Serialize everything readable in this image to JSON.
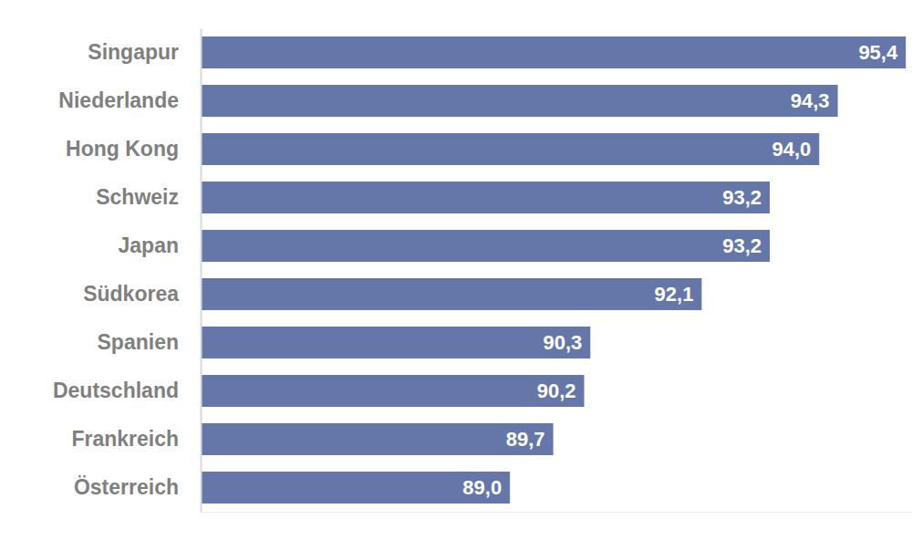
{
  "chart_data": {
    "type": "bar",
    "orientation": "horizontal",
    "categories": [
      "Singapur",
      "Niederlande",
      "Hong Kong",
      "Schweiz",
      "Japan",
      "Südkorea",
      "Spanien",
      "Deutschland",
      "Frankreich",
      "Österreich"
    ],
    "values": [
      95.4,
      94.3,
      94.0,
      93.2,
      93.2,
      92.1,
      90.3,
      90.2,
      89.7,
      89.0
    ],
    "value_labels": [
      "95,4",
      "94,3",
      "94,0",
      "93,2",
      "93,2",
      "92,1",
      "90,3",
      "90,2",
      "89,7",
      "89,0"
    ],
    "color": "#6577a9",
    "xlim": [
      84,
      95.5
    ],
    "xticks": [],
    "data_labels": true,
    "tick_labels": "y"
  }
}
